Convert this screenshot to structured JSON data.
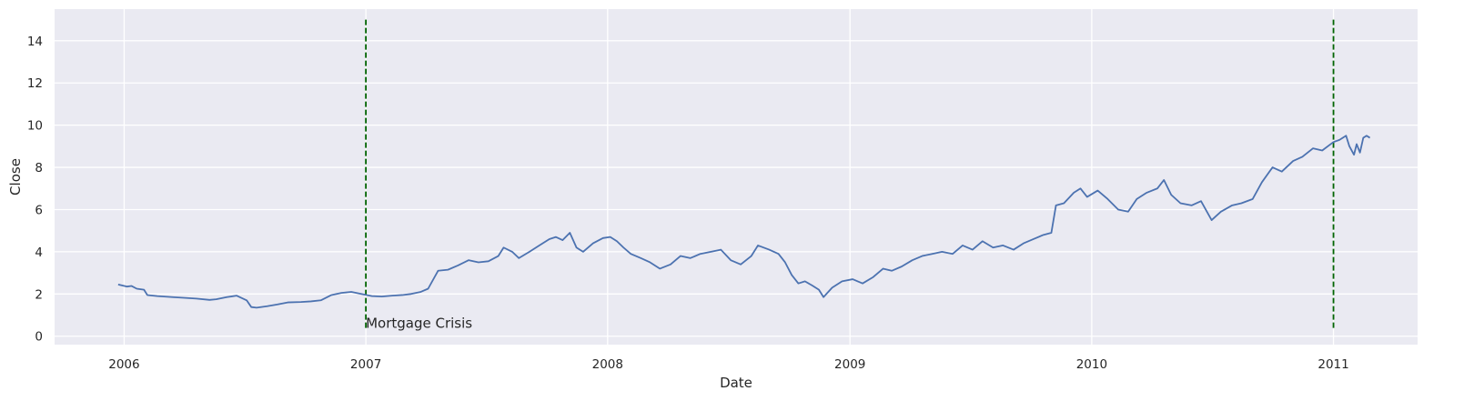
{
  "colors": {
    "background": "#ffffff",
    "plot_background": "#eaeaf2",
    "grid": "#ffffff",
    "series_line": "#4c72b0",
    "vline": "#006400"
  },
  "chart_data": {
    "type": "line",
    "xlabel": "Date",
    "ylabel": "Close",
    "xlim": [
      "2005-09-18",
      "2011-05-08"
    ],
    "ylim": [
      -0.4,
      15.5
    ],
    "grid": true,
    "x_ticks": [
      "2006-01-01",
      "2007-01-01",
      "2008-01-01",
      "2009-01-01",
      "2010-01-01",
      "2011-01-01"
    ],
    "x_tick_labels": [
      "2006",
      "2007",
      "2008",
      "2009",
      "2010",
      "2011"
    ],
    "y_ticks": [
      0,
      2,
      4,
      6,
      8,
      10,
      12,
      14
    ],
    "y_tick_labels": [
      "0",
      "2",
      "4",
      "6",
      "8",
      "10",
      "12",
      "14"
    ],
    "series": [
      {
        "x": [
          "2005-12-23",
          "2006-01-05",
          "2006-01-12",
          "2006-01-20",
          "2006-01-31",
          "2006-02-05",
          "2006-02-20",
          "2006-03-15",
          "2006-04-01",
          "2006-04-20",
          "2006-05-10",
          "2006-05-20",
          "2006-06-05",
          "2006-06-20",
          "2006-07-05",
          "2006-07-12",
          "2006-07-20",
          "2006-08-05",
          "2006-08-20",
          "2006-09-05",
          "2006-09-25",
          "2006-10-10",
          "2006-10-25",
          "2006-11-10",
          "2006-11-25",
          "2006-12-10",
          "2006-12-25",
          "2007-01-10",
          "2007-01-25",
          "2007-02-10",
          "2007-02-25",
          "2007-03-10",
          "2007-03-25",
          "2007-04-05",
          "2007-04-20",
          "2007-05-05",
          "2007-05-20",
          "2007-06-05",
          "2007-06-20",
          "2007-07-05",
          "2007-07-20",
          "2007-07-28",
          "2007-08-10",
          "2007-08-20",
          "2007-09-05",
          "2007-09-20",
          "2007-10-05",
          "2007-10-15",
          "2007-10-25",
          "2007-11-05",
          "2007-11-15",
          "2007-11-25",
          "2007-12-10",
          "2007-12-25",
          "2008-01-05",
          "2008-01-15",
          "2008-01-25",
          "2008-02-05",
          "2008-02-20",
          "2008-03-05",
          "2008-03-20",
          "2008-04-05",
          "2008-04-20",
          "2008-05-05",
          "2008-05-20",
          "2008-06-05",
          "2008-06-20",
          "2008-07-05",
          "2008-07-20",
          "2008-08-05",
          "2008-08-15",
          "2008-09-01",
          "2008-09-15",
          "2008-09-25",
          "2008-10-05",
          "2008-10-15",
          "2008-10-25",
          "2008-11-05",
          "2008-11-15",
          "2008-11-22",
          "2008-12-05",
          "2008-12-20",
          "2009-01-05",
          "2009-01-20",
          "2009-02-05",
          "2009-02-20",
          "2009-03-05",
          "2009-03-20",
          "2009-04-05",
          "2009-04-20",
          "2009-05-05",
          "2009-05-20",
          "2009-06-05",
          "2009-06-20",
          "2009-07-05",
          "2009-07-20",
          "2009-08-05",
          "2009-08-20",
          "2009-09-05",
          "2009-09-20",
          "2009-10-05",
          "2009-10-20",
          "2009-11-01",
          "2009-11-08",
          "2009-11-20",
          "2009-12-05",
          "2009-12-15",
          "2009-12-25",
          "2010-01-10",
          "2010-01-25",
          "2010-02-10",
          "2010-02-25",
          "2010-03-10",
          "2010-03-25",
          "2010-04-10",
          "2010-04-20",
          "2010-05-01",
          "2010-05-15",
          "2010-06-01",
          "2010-06-15",
          "2010-07-01",
          "2010-07-15",
          "2010-08-01",
          "2010-08-15",
          "2010-09-01",
          "2010-09-15",
          "2010-10-01",
          "2010-10-15",
          "2010-11-01",
          "2010-11-15",
          "2010-12-01",
          "2010-12-15",
          "2011-01-01",
          "2011-01-10",
          "2011-01-20",
          "2011-01-25",
          "2011-02-01",
          "2011-02-05",
          "2011-02-10",
          "2011-02-15",
          "2011-02-20",
          "2011-02-25"
        ],
        "y": [
          2.45,
          2.35,
          2.38,
          2.25,
          2.2,
          1.95,
          1.9,
          1.85,
          1.82,
          1.78,
          1.72,
          1.75,
          1.85,
          1.92,
          1.7,
          1.38,
          1.35,
          1.42,
          1.5,
          1.6,
          1.62,
          1.65,
          1.7,
          1.95,
          2.05,
          2.1,
          2.0,
          1.9,
          1.88,
          1.92,
          1.95,
          2.0,
          2.1,
          2.25,
          3.1,
          3.15,
          3.35,
          3.6,
          3.5,
          3.55,
          3.8,
          4.2,
          4.0,
          3.7,
          4.0,
          4.3,
          4.6,
          4.7,
          4.55,
          4.9,
          4.2,
          4.0,
          4.4,
          4.65,
          4.7,
          4.5,
          4.2,
          3.9,
          3.7,
          3.5,
          3.2,
          3.4,
          3.8,
          3.7,
          3.9,
          4.0,
          4.1,
          3.6,
          3.4,
          3.8,
          4.3,
          4.1,
          3.9,
          3.5,
          2.9,
          2.5,
          2.6,
          2.4,
          2.2,
          1.85,
          2.3,
          2.6,
          2.7,
          2.5,
          2.8,
          3.2,
          3.1,
          3.3,
          3.6,
          3.8,
          3.9,
          4.0,
          3.9,
          4.3,
          4.1,
          4.5,
          4.2,
          4.3,
          4.1,
          4.4,
          4.6,
          4.8,
          4.9,
          6.2,
          6.3,
          6.8,
          7.0,
          6.6,
          6.9,
          6.5,
          6.0,
          5.9,
          6.5,
          6.8,
          7.0,
          7.4,
          6.7,
          6.3,
          6.2,
          6.4,
          5.5,
          5.9,
          6.2,
          6.3,
          6.5,
          7.3,
          8.0,
          7.8,
          8.3,
          8.5,
          8.9,
          8.8,
          9.2,
          9.3,
          9.5,
          9.0,
          8.6,
          9.1,
          8.7,
          9.4,
          9.5,
          9.4
        ]
      }
    ],
    "vlines": [
      {
        "x": "2007-01-01",
        "y_range": [
          0.35,
          15.0
        ],
        "style": "dashed",
        "color": "#006400"
      },
      {
        "x": "2011-01-01",
        "y_range": [
          0.35,
          15.0
        ],
        "style": "dashed",
        "color": "#006400"
      }
    ],
    "annotations": [
      {
        "text": "Mortgage Crisis",
        "x": "2007-01-01",
        "y": 0.35
      }
    ]
  }
}
